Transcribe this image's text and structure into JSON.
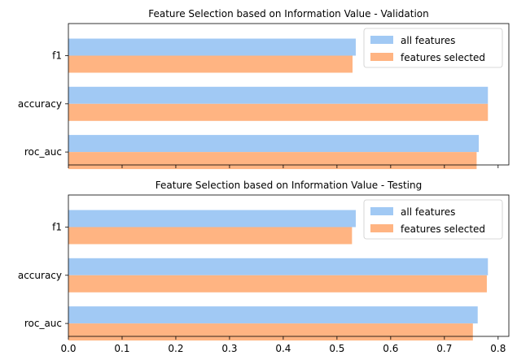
{
  "colors": {
    "series_all": "#a1c9f4",
    "series_selected": "#ffb482",
    "axis": "#000000",
    "legend_border": "#cccccc"
  },
  "legend": {
    "placement": "top-right",
    "entries": [
      "all features",
      "features selected"
    ]
  },
  "chart_data": [
    {
      "type": "bar",
      "orientation": "horizontal",
      "title": "Feature Selection based on Information Value - Validation",
      "categories": [
        "f1",
        "accuracy",
        "roc_auc"
      ],
      "series": [
        {
          "name": "all features",
          "values": [
            0.535,
            0.781,
            0.764
          ]
        },
        {
          "name": "features selected",
          "values": [
            0.529,
            0.781,
            0.76
          ]
        }
      ],
      "xlim": [
        0,
        0.82
      ],
      "xticks": [],
      "grid": false,
      "legend_placement": "top-right"
    },
    {
      "type": "bar",
      "orientation": "horizontal",
      "title": "Feature Selection based on Information Value - Testing",
      "categories": [
        "f1",
        "accuracy",
        "roc_auc"
      ],
      "series": [
        {
          "name": "all features",
          "values": [
            0.535,
            0.781,
            0.762
          ]
        },
        {
          "name": "features selected",
          "values": [
            0.528,
            0.779,
            0.753
          ]
        }
      ],
      "xlim": [
        0,
        0.82
      ],
      "xticks": [
        "0.0",
        "0.1",
        "0.2",
        "0.3",
        "0.4",
        "0.5",
        "0.6",
        "0.7",
        "0.8"
      ],
      "grid": false,
      "legend_placement": "top-right"
    }
  ]
}
